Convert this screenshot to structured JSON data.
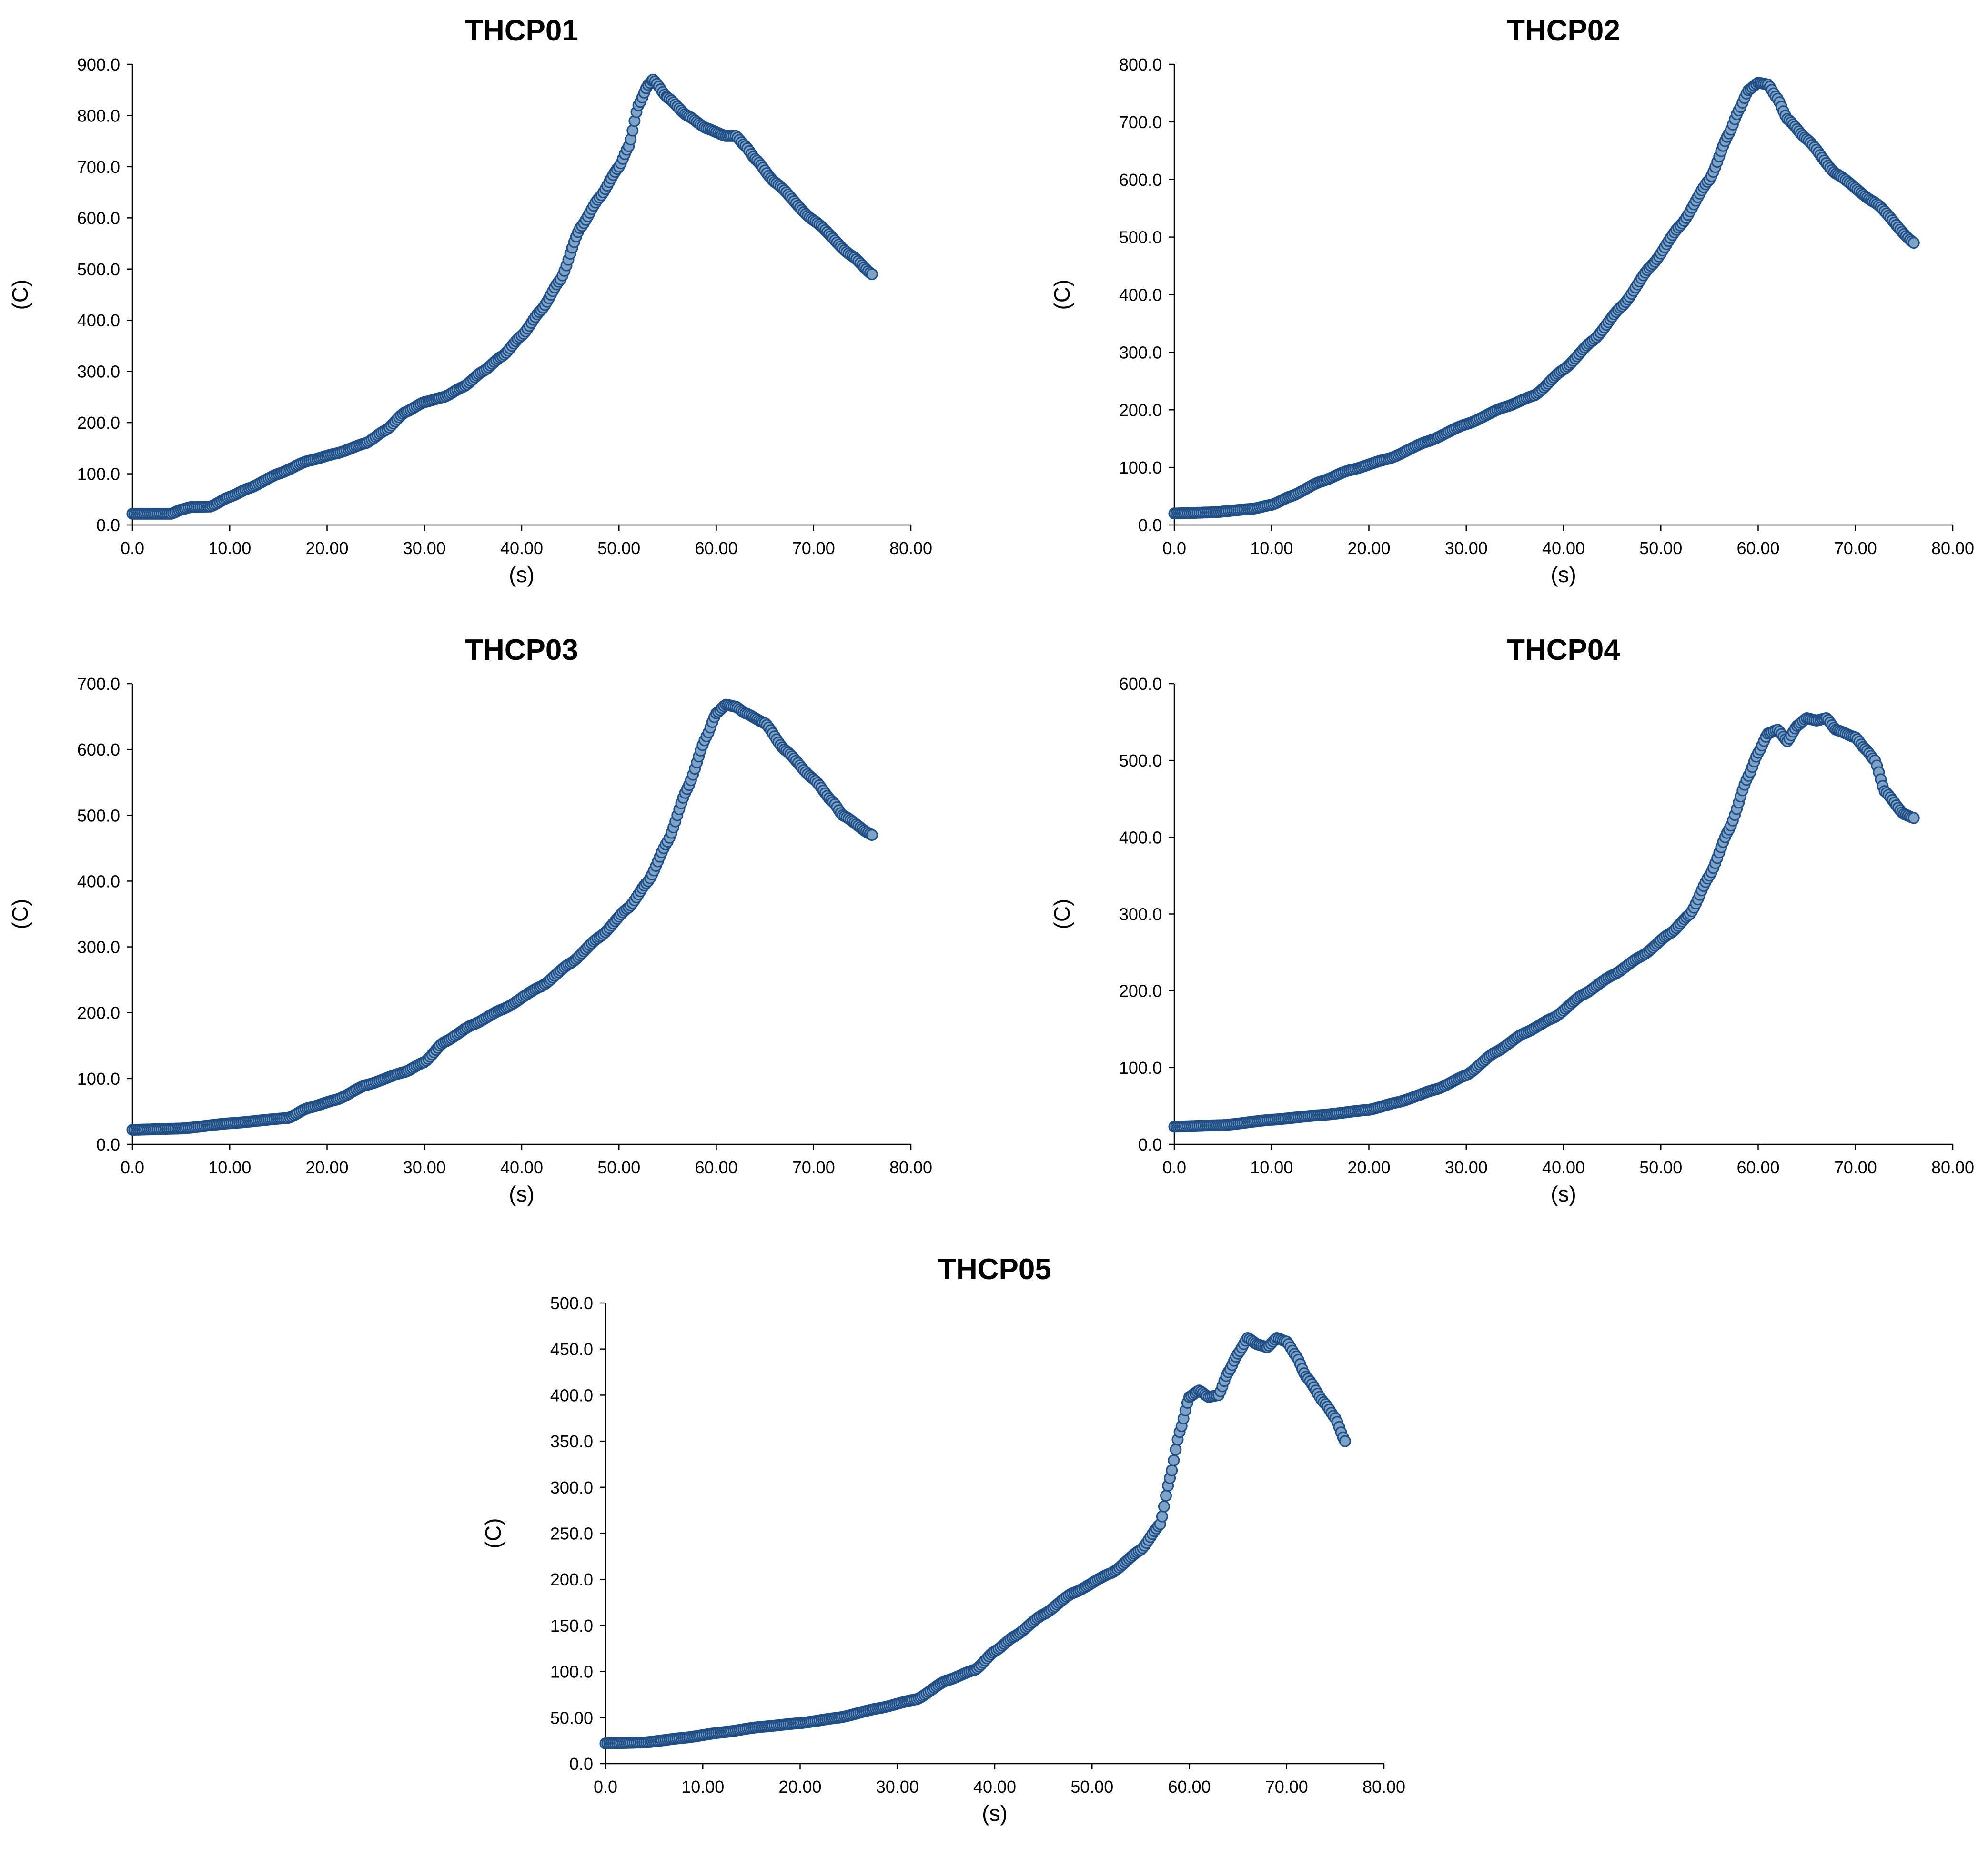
{
  "chart_data": [
    {
      "type": "scatter",
      "title": "THCP01",
      "xlabel": "(s)",
      "ylabel": "(C)",
      "xlim": [
        0,
        80
      ],
      "ylim": [
        0,
        900
      ],
      "xticks": [
        "0.0",
        "10.00",
        "20.00",
        "30.00",
        "40.00",
        "50.00",
        "60.00",
        "70.00",
        "80.00"
      ],
      "yticks": [
        "0.0",
        "100.0",
        "200.0",
        "300.0",
        "400.0",
        "500.0",
        "600.0",
        "700.0",
        "800.0",
        "900.0"
      ],
      "series": [
        {
          "name": "THCP01",
          "color": "#1f4e86",
          "points": [
            [
              0,
              22
            ],
            [
              4,
              22
            ],
            [
              5,
              30
            ],
            [
              6,
              35
            ],
            [
              8,
              36
            ],
            [
              10,
              55
            ],
            [
              12,
              72
            ],
            [
              15,
              100
            ],
            [
              18,
              125
            ],
            [
              21,
              140
            ],
            [
              24,
              160
            ],
            [
              26,
              185
            ],
            [
              28,
              220
            ],
            [
              30,
              240
            ],
            [
              32,
              250
            ],
            [
              34,
              270
            ],
            [
              36,
              300
            ],
            [
              38,
              330
            ],
            [
              40,
              370
            ],
            [
              42,
              420
            ],
            [
              44,
              480
            ],
            [
              46,
              580
            ],
            [
              48,
              640
            ],
            [
              50,
              700
            ],
            [
              51,
              740
            ],
            [
              52,
              820
            ],
            [
              53,
              860
            ],
            [
              53.5,
              870
            ],
            [
              55,
              835
            ],
            [
              57,
              800
            ],
            [
              59,
              775
            ],
            [
              61,
              760
            ],
            [
              62,
              760
            ],
            [
              63,
              740
            ],
            [
              64,
              715
            ],
            [
              66,
              670
            ],
            [
              70,
              595
            ],
            [
              74,
              525
            ],
            [
              76,
              490
            ]
          ]
        }
      ]
    },
    {
      "type": "scatter",
      "title": "THCP02",
      "xlabel": "(s)",
      "ylabel": "(C)",
      "xlim": [
        0,
        80
      ],
      "ylim": [
        0,
        800
      ],
      "xticks": [
        "0.0",
        "10.00",
        "20.00",
        "30.00",
        "40.00",
        "50.00",
        "60.00",
        "70.00",
        "80.00"
      ],
      "yticks": [
        "0.0",
        "100.0",
        "200.0",
        "300.0",
        "400.0",
        "500.0",
        "600.0",
        "700.0",
        "800.0"
      ],
      "series": [
        {
          "name": "THCP02",
          "color": "#1f4e86",
          "points": [
            [
              0,
              20
            ],
            [
              4,
              22
            ],
            [
              8,
              28
            ],
            [
              10,
              35
            ],
            [
              12,
              50
            ],
            [
              15,
              75
            ],
            [
              18,
              95
            ],
            [
              22,
              115
            ],
            [
              26,
              145
            ],
            [
              30,
              175
            ],
            [
              34,
              205
            ],
            [
              37,
              225
            ],
            [
              40,
              270
            ],
            [
              43,
              320
            ],
            [
              46,
              380
            ],
            [
              49,
              450
            ],
            [
              52,
              520
            ],
            [
              55,
              600
            ],
            [
              57,
              680
            ],
            [
              58,
              720
            ],
            [
              59,
              755
            ],
            [
              60,
              768
            ],
            [
              61,
              765
            ],
            [
              62,
              740
            ],
            [
              63,
              705
            ],
            [
              65,
              670
            ],
            [
              68,
              610
            ],
            [
              72,
              560
            ],
            [
              76,
              490
            ]
          ]
        }
      ]
    },
    {
      "type": "scatter",
      "title": "THCP03",
      "xlabel": "(s)",
      "ylabel": "(C)",
      "xlim": [
        0,
        80
      ],
      "ylim": [
        0,
        700
      ],
      "xticks": [
        "0.0",
        "10.00",
        "20.00",
        "30.00",
        "40.00",
        "50.00",
        "60.00",
        "70.00",
        "80.00"
      ],
      "yticks": [
        "0.0",
        "100.0",
        "200.0",
        "300.0",
        "400.0",
        "500.0",
        "600.0",
        "700.0"
      ],
      "series": [
        {
          "name": "THCP03",
          "color": "#1f4e86",
          "points": [
            [
              0,
              22
            ],
            [
              5,
              24
            ],
            [
              10,
              32
            ],
            [
              16,
              40
            ],
            [
              18,
              55
            ],
            [
              21,
              68
            ],
            [
              24,
              90
            ],
            [
              28,
              110
            ],
            [
              30,
              125
            ],
            [
              32,
              155
            ],
            [
              35,
              182
            ],
            [
              38,
              205
            ],
            [
              42,
              240
            ],
            [
              45,
              275
            ],
            [
              48,
              315
            ],
            [
              51,
              360
            ],
            [
              53,
              400
            ],
            [
              55,
              460
            ],
            [
              57,
              540
            ],
            [
              59,
              620
            ],
            [
              60,
              655
            ],
            [
              61,
              668
            ],
            [
              62,
              665
            ],
            [
              63,
              655
            ],
            [
              65,
              640
            ],
            [
              67,
              600
            ],
            [
              70,
              555
            ],
            [
              72,
              520
            ],
            [
              73,
              500
            ],
            [
              76,
              470
            ]
          ]
        }
      ]
    },
    {
      "type": "scatter",
      "title": "THCP04",
      "xlabel": "(s)",
      "ylabel": "(C)",
      "xlim": [
        0,
        80
      ],
      "ylim": [
        0,
        600
      ],
      "xticks": [
        "0.0",
        "10.00",
        "20.00",
        "30.00",
        "40.00",
        "50.00",
        "60.00",
        "70.00",
        "80.00"
      ],
      "yticks": [
        "0.0",
        "100.0",
        "200.0",
        "300.0",
        "400.0",
        "500.0",
        "600.0"
      ],
      "series": [
        {
          "name": "THCP04",
          "color": "#1f4e86",
          "points": [
            [
              0,
              23
            ],
            [
              5,
              25
            ],
            [
              10,
              32
            ],
            [
              15,
              38
            ],
            [
              20,
              45
            ],
            [
              23,
              55
            ],
            [
              27,
              72
            ],
            [
              30,
              90
            ],
            [
              33,
              120
            ],
            [
              36,
              145
            ],
            [
              39,
              165
            ],
            [
              42,
              195
            ],
            [
              45,
              220
            ],
            [
              48,
              245
            ],
            [
              51,
              275
            ],
            [
              53,
              300
            ],
            [
              55,
              350
            ],
            [
              57,
              410
            ],
            [
              59,
              480
            ],
            [
              60,
              510
            ],
            [
              61,
              535
            ],
            [
              62,
              540
            ],
            [
              63,
              525
            ],
            [
              64,
              545
            ],
            [
              65,
              555
            ],
            [
              66,
              552
            ],
            [
              67,
              555
            ],
            [
              68,
              540
            ],
            [
              70,
              530
            ],
            [
              71,
              515
            ],
            [
              72,
              500
            ],
            [
              73,
              460
            ],
            [
              75,
              430
            ],
            [
              76,
              425
            ]
          ]
        }
      ]
    },
    {
      "type": "scatter",
      "title": "THCP05",
      "xlabel": "(s)",
      "ylabel": "(C)",
      "xlim": [
        0,
        80
      ],
      "ylim": [
        0,
        500
      ],
      "xticks": [
        "0.0",
        "10.00",
        "20.00",
        "30.00",
        "40.00",
        "50.00",
        "60.00",
        "70.00",
        "80.00"
      ],
      "yticks": [
        "0.0",
        "50.00",
        "100.0",
        "150.0",
        "200.0",
        "250.0",
        "300.0",
        "350.0",
        "400.0",
        "450.0",
        "500.0"
      ],
      "series": [
        {
          "name": "THCP05",
          "color": "#1f4e86",
          "points": [
            [
              0,
              22
            ],
            [
              4,
              23
            ],
            [
              8,
              28
            ],
            [
              12,
              34
            ],
            [
              16,
              40
            ],
            [
              20,
              44
            ],
            [
              24,
              50
            ],
            [
              28,
              60
            ],
            [
              32,
              70
            ],
            [
              35,
              90
            ],
            [
              38,
              102
            ],
            [
              40,
              122
            ],
            [
              42,
              138
            ],
            [
              45,
              162
            ],
            [
              48,
              185
            ],
            [
              52,
              207
            ],
            [
              55,
              232
            ],
            [
              57,
              260
            ],
            [
              58,
              310
            ],
            [
              59,
              360
            ],
            [
              60,
              398
            ],
            [
              61,
              405
            ],
            [
              62,
              398
            ],
            [
              63,
              400
            ],
            [
              64,
              425
            ],
            [
              65,
              445
            ],
            [
              66,
              462
            ],
            [
              67,
              455
            ],
            [
              68,
              452
            ],
            [
              69,
              462
            ],
            [
              70,
              458
            ],
            [
              71,
              442
            ],
            [
              72,
              420
            ],
            [
              74,
              390
            ],
            [
              75,
              375
            ],
            [
              76,
              350
            ]
          ]
        }
      ]
    }
  ]
}
